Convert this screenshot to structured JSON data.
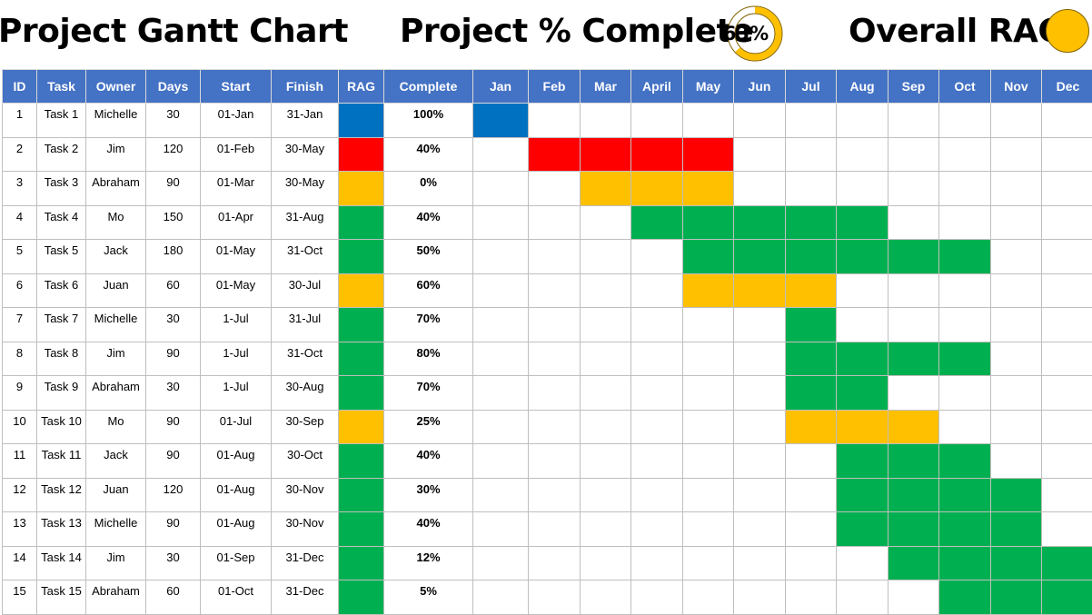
{
  "header": {
    "title": "Project Gantt Chart",
    "percent_title": "Project % Complete",
    "percent_value": "63%",
    "percent_fraction": 0.63,
    "rag_title": "Overall RAG",
    "rag_color": "#ffc000"
  },
  "colors": {
    "header_bg": "#4472c4",
    "blue": "#0070c0",
    "red": "#ff0000",
    "amber": "#ffc000",
    "green": "#00b050",
    "grid": "#bfbfbf"
  },
  "chart_data": {
    "type": "table",
    "columns": [
      "ID",
      "Task",
      "Owner",
      "Days",
      "Start",
      "Finish",
      "RAG",
      "Complete"
    ],
    "months": [
      "Jan",
      "Feb",
      "Mar",
      "April",
      "May",
      "Jun",
      "Jul",
      "Aug",
      "Sep",
      "Oct",
      "Nov",
      "Dec"
    ],
    "rows": [
      {
        "id": "1",
        "task": "Task 1",
        "owner": "Michelle",
        "days": "30",
        "start": "01-Jan",
        "finish": "31-Jan",
        "rag": "blue",
        "complete": "100%",
        "from": 1,
        "to": 1
      },
      {
        "id": "2",
        "task": "Task 2",
        "owner": "Jim",
        "days": "120",
        "start": "01-Feb",
        "finish": "30-May",
        "rag": "red",
        "complete": "40%",
        "from": 2,
        "to": 5
      },
      {
        "id": "3",
        "task": "Task 3",
        "owner": "Abraham",
        "days": "90",
        "start": "01-Mar",
        "finish": "30-May",
        "rag": "amber",
        "complete": "0%",
        "from": 3,
        "to": 5
      },
      {
        "id": "4",
        "task": "Task 4",
        "owner": "Mo",
        "days": "150",
        "start": "01-Apr",
        "finish": "31-Aug",
        "rag": "green",
        "complete": "40%",
        "from": 4,
        "to": 8
      },
      {
        "id": "5",
        "task": "Task 5",
        "owner": "Jack",
        "days": "180",
        "start": "01-May",
        "finish": "31-Oct",
        "rag": "green",
        "complete": "50%",
        "from": 5,
        "to": 10
      },
      {
        "id": "6",
        "task": "Task 6",
        "owner": "Juan",
        "days": "60",
        "start": "01-May",
        "finish": "30-Jul",
        "rag": "amber",
        "complete": "60%",
        "from": 5,
        "to": 7
      },
      {
        "id": "7",
        "task": "Task 7",
        "owner": "Michelle",
        "days": "30",
        "start": "1-Jul",
        "finish": "31-Jul",
        "rag": "green",
        "complete": "70%",
        "from": 7,
        "to": 7
      },
      {
        "id": "8",
        "task": "Task 8",
        "owner": "Jim",
        "days": "90",
        "start": "1-Jul",
        "finish": "31-Oct",
        "rag": "green",
        "complete": "80%",
        "from": 7,
        "to": 10
      },
      {
        "id": "9",
        "task": "Task 9",
        "owner": "Abraham",
        "days": "30",
        "start": "1-Jul",
        "finish": "30-Aug",
        "rag": "green",
        "complete": "70%",
        "from": 7,
        "to": 8
      },
      {
        "id": "10",
        "task": "Task 10",
        "owner": "Mo",
        "days": "90",
        "start": "01-Jul",
        "finish": "30-Sep",
        "rag": "amber",
        "complete": "25%",
        "from": 7,
        "to": 9
      },
      {
        "id": "11",
        "task": "Task 11",
        "owner": "Jack",
        "days": "90",
        "start": "01-Aug",
        "finish": "30-Oct",
        "rag": "green",
        "complete": "40%",
        "from": 8,
        "to": 10
      },
      {
        "id": "12",
        "task": "Task 12",
        "owner": "Juan",
        "days": "120",
        "start": "01-Aug",
        "finish": "30-Nov",
        "rag": "green",
        "complete": "30%",
        "from": 8,
        "to": 11
      },
      {
        "id": "13",
        "task": "Task 13",
        "owner": "Michelle",
        "days": "90",
        "start": "01-Aug",
        "finish": "30-Nov",
        "rag": "green",
        "complete": "40%",
        "from": 8,
        "to": 11
      },
      {
        "id": "14",
        "task": "Task 14",
        "owner": "Jim",
        "days": "30",
        "start": "01-Sep",
        "finish": "31-Dec",
        "rag": "green",
        "complete": "12%",
        "from": 9,
        "to": 12
      },
      {
        "id": "15",
        "task": "Task 15",
        "owner": "Abraham",
        "days": "60",
        "start": "01-Oct",
        "finish": "31-Dec",
        "rag": "green",
        "complete": "5%",
        "from": 10,
        "to": 12
      }
    ]
  }
}
